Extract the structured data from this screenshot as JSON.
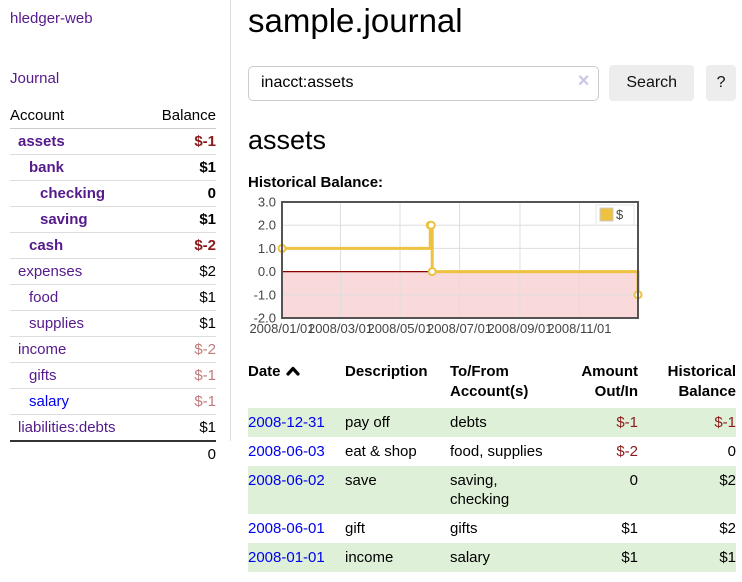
{
  "colors": {
    "link_purple": "#551a8b",
    "link_blue": "#0000ee",
    "negative_strong": "#8b1a1a",
    "negative_faint": "#c07a7a",
    "black": "#000000",
    "stripe_green": "#dff0d8",
    "accent_gold": "#edc240"
  },
  "sidebar": {
    "brand": "hledger-web",
    "nav_journal": "Journal",
    "accounts_table": {
      "headers": [
        "Account",
        "Balance"
      ],
      "rows": [
        {
          "name": "assets",
          "depth": 1,
          "bold": true,
          "link_color": "#551a8b",
          "balance": "$-1",
          "balance_color": "#8b1a1a"
        },
        {
          "name": "bank",
          "depth": 2,
          "bold": true,
          "link_color": "#551a8b",
          "balance": "$1",
          "balance_color": "#000000"
        },
        {
          "name": "checking",
          "depth": 3,
          "bold": true,
          "link_color": "#551a8b",
          "balance": "0",
          "balance_color": "#000000"
        },
        {
          "name": "saving",
          "depth": 3,
          "bold": true,
          "link_color": "#551a8b",
          "balance": "$1",
          "balance_color": "#000000"
        },
        {
          "name": "cash",
          "depth": 2,
          "bold": true,
          "link_color": "#551a8b",
          "balance": "$-2",
          "balance_color": "#8b1a1a"
        },
        {
          "name": "expenses",
          "depth": 1,
          "bold": false,
          "link_color": "#551a8b",
          "balance": "$2",
          "balance_color": "#000000"
        },
        {
          "name": "food",
          "depth": 2,
          "bold": false,
          "link_color": "#551a8b",
          "balance": "$1",
          "balance_color": "#000000"
        },
        {
          "name": "supplies",
          "depth": 2,
          "bold": false,
          "link_color": "#551a8b",
          "balance": "$1",
          "balance_color": "#000000"
        },
        {
          "name": "income",
          "depth": 1,
          "bold": false,
          "link_color": "#551a8b",
          "balance": "$-2",
          "balance_color": "#c07a7a"
        },
        {
          "name": "gifts",
          "depth": 2,
          "bold": false,
          "link_color": "#551a8b",
          "balance": "$-1",
          "balance_color": "#c07a7a"
        },
        {
          "name": "salary",
          "depth": 2,
          "bold": false,
          "link_color": "#0000ee",
          "balance": "$-1",
          "balance_color": "#c07a7a"
        },
        {
          "name": "liabilities:debts",
          "depth": 1,
          "bold": false,
          "link_color": "#551a8b",
          "balance": "$1",
          "balance_color": "#000000"
        }
      ],
      "total": "0"
    }
  },
  "header": {
    "title": "sample.journal"
  },
  "search": {
    "value": "inacct:assets",
    "clear_icon": "×",
    "button_label": "Search",
    "help_label": "?"
  },
  "account_page": {
    "heading": "assets",
    "chart_title": "Historical Balance:"
  },
  "chart_data": {
    "type": "line",
    "step": true,
    "title": "Historical Balance:",
    "series": [
      {
        "name": "$",
        "color": "#edc240",
        "points": [
          [
            "2008-01-01",
            1
          ],
          [
            "2008-06-01",
            2
          ],
          [
            "2008-06-02",
            2
          ],
          [
            "2008-06-03",
            0
          ],
          [
            "2008-12-31",
            -1
          ]
        ]
      }
    ],
    "xlim": [
      "2008-01-01",
      "2008-12-31"
    ],
    "ylim": [
      -2,
      3
    ],
    "x_ticks": [
      "2008/01/01",
      "2008/03/01",
      "2008/05/01",
      "2008/07/01",
      "2008/09/01",
      "2008/11/01"
    ],
    "y_ticks": [
      "3.0",
      "2.0",
      "1.0",
      "0.0",
      "-1.0",
      "-2.0"
    ],
    "grid": true,
    "legend_position": "top-right",
    "legend_label": "$",
    "negative_region_color": "#f9d9d9",
    "zero_line_color": "#8b0000",
    "border_color": "#545454",
    "grid_color": "#dedede",
    "tick_label_color": "#444444"
  },
  "register": {
    "headers": [
      "Date",
      "Description",
      "To/From Account(s)",
      "Amount Out/In",
      "Historical Balance"
    ],
    "rows": [
      {
        "date": "2008-12-31",
        "description": "pay off",
        "accounts": "debts",
        "amount": "$-1",
        "amount_color": "#8b1a1a",
        "balance": "$-1",
        "balance_color": "#8b1a1a",
        "stripe": true
      },
      {
        "date": "2008-06-03",
        "description": "eat & shop",
        "accounts": "food, supplies",
        "amount": "$-2",
        "amount_color": "#8b1a1a",
        "balance": "0",
        "balance_color": "#000000",
        "stripe": false
      },
      {
        "date": "2008-06-02",
        "description": "save",
        "accounts": "saving, checking",
        "amount": "0",
        "amount_color": "#000000",
        "balance": "$2",
        "balance_color": "#000000",
        "stripe": true
      },
      {
        "date": "2008-06-01",
        "description": "gift",
        "accounts": "gifts",
        "amount": "$1",
        "amount_color": "#000000",
        "balance": "$2",
        "balance_color": "#000000",
        "stripe": false
      },
      {
        "date": "2008-01-01",
        "description": "income",
        "accounts": "salary",
        "amount": "$1",
        "amount_color": "#000000",
        "balance": "$1",
        "balance_color": "#000000",
        "stripe": true
      }
    ]
  }
}
